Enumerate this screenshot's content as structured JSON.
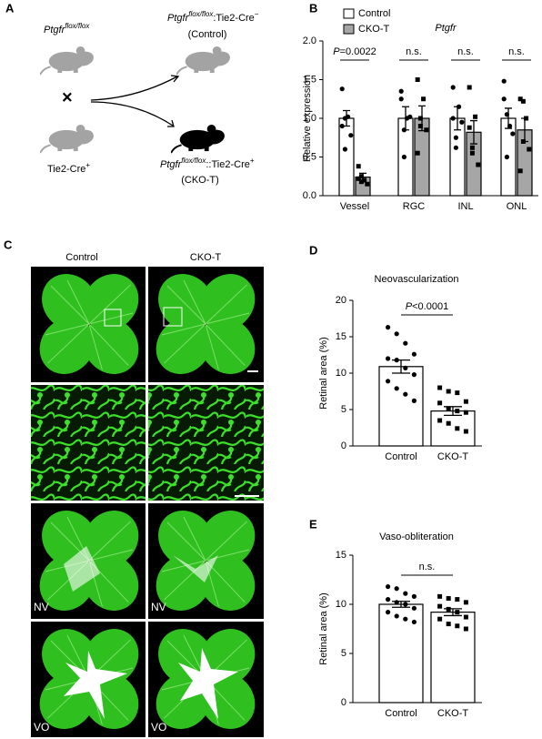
{
  "panel_letters": [
    "A",
    "B",
    "C",
    "D",
    "E"
  ],
  "panel_a": {
    "parent1": {
      "gene": "Ptgfr",
      "allele": "flox/flox"
    },
    "cross": "×",
    "parent2": {
      "cre": "Tie2-Cre",
      "sign": "+"
    },
    "control": {
      "gene": "Ptgfr",
      "allele": "flox/flox",
      "cre": ":Tie2-Cre",
      "sign": "−",
      "label": "(Control)"
    },
    "cko": {
      "gene": "Ptgfr",
      "allele": "flox/flox",
      "cre": "::Tie2-Cre",
      "sign": "+",
      "label": "(CKO-T)"
    }
  },
  "panel_c": {
    "columns": [
      "Control",
      "CKO-T"
    ],
    "row_labels": [
      "NV",
      "NV",
      "VO",
      "VO"
    ]
  },
  "chart_data": [
    {
      "type": "bar",
      "title": "Ptgfr",
      "ylabel": "Relative expression",
      "categories": [
        "Vessel",
        "RGC",
        "INL",
        "ONL"
      ],
      "series": [
        {
          "name": "Control",
          "color": "#ffffff",
          "marker": "circle",
          "values": [
            1.0,
            1.0,
            1.0,
            1.0
          ],
          "errors": [
            0.1,
            0.15,
            0.15,
            0.13
          ],
          "points": [
            [
              1.38,
              1.0,
              1.02,
              0.78,
              0.9,
              0.6
            ],
            [
              1.25,
              0.5,
              1.0,
              1.02,
              1.35,
              0.85
            ],
            [
              1.4,
              0.75,
              1.15,
              0.95,
              1.0,
              0.62
            ],
            [
              1.48,
              1.05,
              0.9,
              0.8,
              1.25,
              0.5
            ]
          ]
        },
        {
          "name": "CKO-T",
          "color": "#a6a6a6",
          "marker": "square",
          "values": [
            0.24,
            1.0,
            0.82,
            0.85
          ],
          "errors": [
            0.05,
            0.16,
            0.15,
            0.15
          ],
          "points": [
            [
              0.38,
              0.25,
              0.2,
              0.15,
              0.22,
              0.18
            ],
            [
              1.5,
              0.9,
              1.25,
              0.85,
              0.55,
              1.0
            ],
            [
              1.4,
              0.62,
              1.02,
              0.4,
              0.88,
              0.55
            ],
            [
              1.25,
              1.22,
              1.0,
              0.6,
              0.32,
              0.7
            ]
          ]
        }
      ],
      "ylim": [
        0,
        2
      ],
      "yticks": [
        {
          "value": 0,
          "label": "0.0"
        },
        0.5,
        {
          "value": 1,
          "label": "1.0"
        },
        1.5,
        {
          "value": 2,
          "label": "2.0"
        }
      ],
      "annotations": [
        {
          "italic": "P",
          "text": "=0.0022"
        },
        {
          "text": "n.s."
        },
        {
          "text": "n.s."
        },
        {
          "text": "n.s."
        }
      ]
    },
    {
      "type": "bar",
      "title": "Neovascularization",
      "ylabel": "Retinal area (%)",
      "categories": [
        "Control",
        "CKO-T"
      ],
      "color": "#ffffff",
      "markers": [
        "circle",
        "square"
      ],
      "values": [
        10.9,
        4.8
      ],
      "errors": [
        0.9,
        0.6
      ],
      "points": [
        [
          16.3,
          15.4,
          14.1,
          12.6,
          12.0,
          11.8,
          10.7,
          9.8,
          8.9,
          7.9,
          7.1,
          6.2
        ],
        [
          8.0,
          7.5,
          7.3,
          6.1,
          5.9,
          5.1,
          4.8,
          4.6,
          3.5,
          3.1,
          2.4,
          2.0
        ]
      ],
      "ylim": [
        0,
        20
      ],
      "yticks": [
        0,
        5,
        10,
        15,
        20
      ],
      "annotations": [
        {
          "italic": "P",
          "text": "<0.0001"
        }
      ]
    },
    {
      "type": "bar",
      "title": "Vaso-obliteration",
      "ylabel": "Retinal area (%)",
      "categories": [
        "Control",
        "CKO-T"
      ],
      "color": "#ffffff",
      "markers": [
        "circle",
        "square"
      ],
      "values": [
        10.0,
        9.2
      ],
      "errors": [
        0.3,
        0.35
      ],
      "points": [
        [
          11.8,
          11.6,
          11.1,
          10.8,
          10.5,
          10.2,
          10.0,
          9.6,
          9.2,
          8.8,
          8.5,
          8.2
        ],
        [
          10.8,
          10.6,
          10.5,
          10.2,
          9.8,
          9.5,
          9.2,
          8.7,
          8.5,
          8.0,
          7.8,
          7.5
        ]
      ],
      "ylim": [
        0,
        15
      ],
      "yticks": [
        0,
        5,
        10,
        15
      ],
      "annotations": [
        {
          "text": "n.s."
        }
      ]
    }
  ]
}
